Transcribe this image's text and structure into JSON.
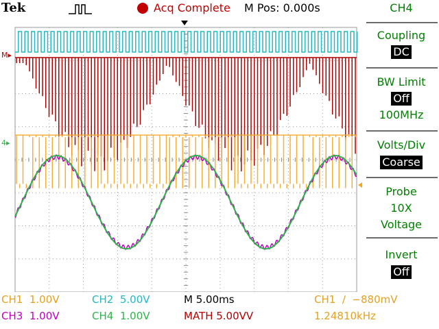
{
  "header": {
    "brand": "Tek",
    "trigger_icon": "pulse-trigger-icon",
    "run_indicator_color": "#c00000",
    "acq_status": "Acq Complete",
    "mpos": "M Pos: 0.000s"
  },
  "channels_colors": {
    "ch1": "#f5a623",
    "ch2": "#22b8c4",
    "ch3": "#c000c0",
    "ch4": "#2db34a",
    "math": "#b00000"
  },
  "menu": {
    "channel": "CH4",
    "coupling_label": "Coupling",
    "coupling_value": "DC",
    "bw_label": "BW Limit",
    "bw_value": "Off",
    "bw_freq": "100MHz",
    "voltsdiv_label": "Volts/Div",
    "voltsdiv_value": "Coarse",
    "probe_label": "Probe",
    "probe_value": "10X",
    "probe_type": "Voltage",
    "invert_label": "Invert",
    "invert_value": "Off"
  },
  "status": {
    "ch1": "CH1  1.00V",
    "ch2": "CH2  5.00V",
    "ch3": "CH3  1.00V",
    "ch4": "CH4  1.00V",
    "timebase": "M 5.00ms",
    "math": "MATH 5.00VV",
    "trigger": "CH1  ∕  −880mV",
    "frequency": "1.24810kHz"
  },
  "waveform_markers": {
    "math_marker": "M▸",
    "ch14_marker": "4▸"
  }
}
